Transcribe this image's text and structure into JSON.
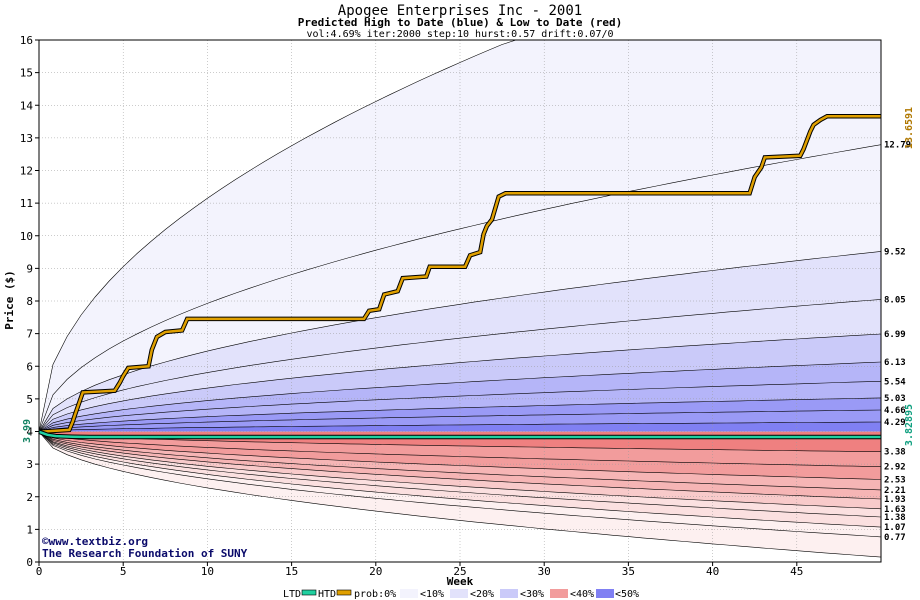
{
  "title": "Apogee Enterprises Inc - 2001",
  "subtitle": "Predicted High to Date (blue) &  Low to Date (red)",
  "params": "vol:4.69% iter:2000 step:10 hurst:0.57 drift:0.07/0",
  "xlabel": "Week",
  "ylabel": "Price ($)",
  "credit1": "©www.textbiz.org",
  "credit2": "The Research Foundation of SUNY",
  "start_label": "3.99",
  "htd_label": "13.6591",
  "ltd_label": "3.82895",
  "legend": {
    "ltd": "LTD",
    "htd": "HTD",
    "prob": "prob:0%",
    "lt10": "<10%",
    "lt20": "<20%",
    "lt30": "<30%",
    "lt40": "<40%",
    "lt50": "<50%"
  },
  "colors": {
    "ltd": "#20d0a0",
    "htd": "#e0a000",
    "high_bands": [
      "#f3f3fd",
      "#e2e2fb",
      "#cacaf9",
      "#b5b5f8",
      "#9a9af6",
      "#8080f3"
    ],
    "low_bands": [
      "#fdf0f0",
      "#fbe0e0",
      "#f8caca",
      "#f6b5b5",
      "#f29c9c",
      "#ef8080"
    ],
    "right_label_htd": "#b07800",
    "right_label_ltd": "#10a080"
  },
  "chart_data": {
    "type": "line",
    "xlim": [
      0,
      50
    ],
    "ylim": [
      0,
      16
    ],
    "xticks": [
      0,
      5,
      10,
      15,
      20,
      25,
      30,
      35,
      40,
      45
    ],
    "yticks": [
      0,
      1,
      2,
      3,
      4,
      5,
      6,
      7,
      8,
      9,
      10,
      11,
      12,
      13,
      14,
      15,
      16
    ],
    "start_price": 3.99,
    "high_quantiles": [
      {
        "end": 20,
        "end_label": ""
      },
      {
        "end": 12.79,
        "end_label": "12.79"
      },
      {
        "end": 9.52,
        "end_label": "9.52"
      },
      {
        "end": 8.05,
        "end_label": "8.05"
      },
      {
        "end": 6.99,
        "end_label": "6.99"
      },
      {
        "end": 6.13,
        "end_label": "6.13"
      },
      {
        "end": 5.54,
        "end_label": "5.54"
      },
      {
        "end": 5.03,
        "end_label": "5.03"
      },
      {
        "end": 4.66,
        "end_label": "4.66"
      },
      {
        "end": 4.29,
        "end_label": "4.29"
      }
    ],
    "low_quantiles": [
      {
        "end": 3.38,
        "end_label": "3.38"
      },
      {
        "end": 2.92,
        "end_label": "2.92"
      },
      {
        "end": 2.53,
        "end_label": "2.53"
      },
      {
        "end": 2.21,
        "end_label": "2.21"
      },
      {
        "end": 1.93,
        "end_label": "1.93"
      },
      {
        "end": 1.63,
        "end_label": "1.63"
      },
      {
        "end": 1.38,
        "end_label": "1.38"
      },
      {
        "end": 1.07,
        "end_label": "1.07"
      },
      {
        "end": 0.77,
        "end_label": "0.77"
      },
      {
        "end": 0.15,
        "end_label": ""
      }
    ],
    "series": [
      {
        "name": "HTD",
        "x": [
          0,
          0.3,
          1.8,
          2.0,
          2.2,
          2.6,
          4.5,
          4.8,
          5.0,
          5.3,
          6.5,
          6.7,
          7.0,
          7.5,
          8.5,
          8.8,
          19.3,
          19.6,
          20.2,
          20.5,
          21.3,
          21.6,
          23.0,
          23.2,
          25.3,
          25.6,
          26.2,
          26.4,
          26.6,
          26.9,
          27.3,
          27.7,
          42.2,
          42.5,
          42.9,
          43.1,
          45.2,
          45.4,
          45.8,
          46.0,
          46.4,
          46.8,
          50
        ],
        "y": [
          3.99,
          4.0,
          4.05,
          4.3,
          4.6,
          5.2,
          5.25,
          5.5,
          5.7,
          5.95,
          6.0,
          6.5,
          6.9,
          7.05,
          7.1,
          7.45,
          7.45,
          7.7,
          7.75,
          8.2,
          8.3,
          8.7,
          8.75,
          9.05,
          9.05,
          9.4,
          9.5,
          10.05,
          10.3,
          10.5,
          11.2,
          11.3,
          11.3,
          11.8,
          12.1,
          12.4,
          12.45,
          12.65,
          13.2,
          13.4,
          13.55,
          13.66,
          13.66
        ]
      },
      {
        "name": "LTD",
        "x": [
          0,
          0.5,
          1.0,
          2.0,
          3.0,
          50
        ],
        "y": [
          3.99,
          3.9,
          3.86,
          3.84,
          3.83,
          3.83
        ]
      }
    ]
  }
}
